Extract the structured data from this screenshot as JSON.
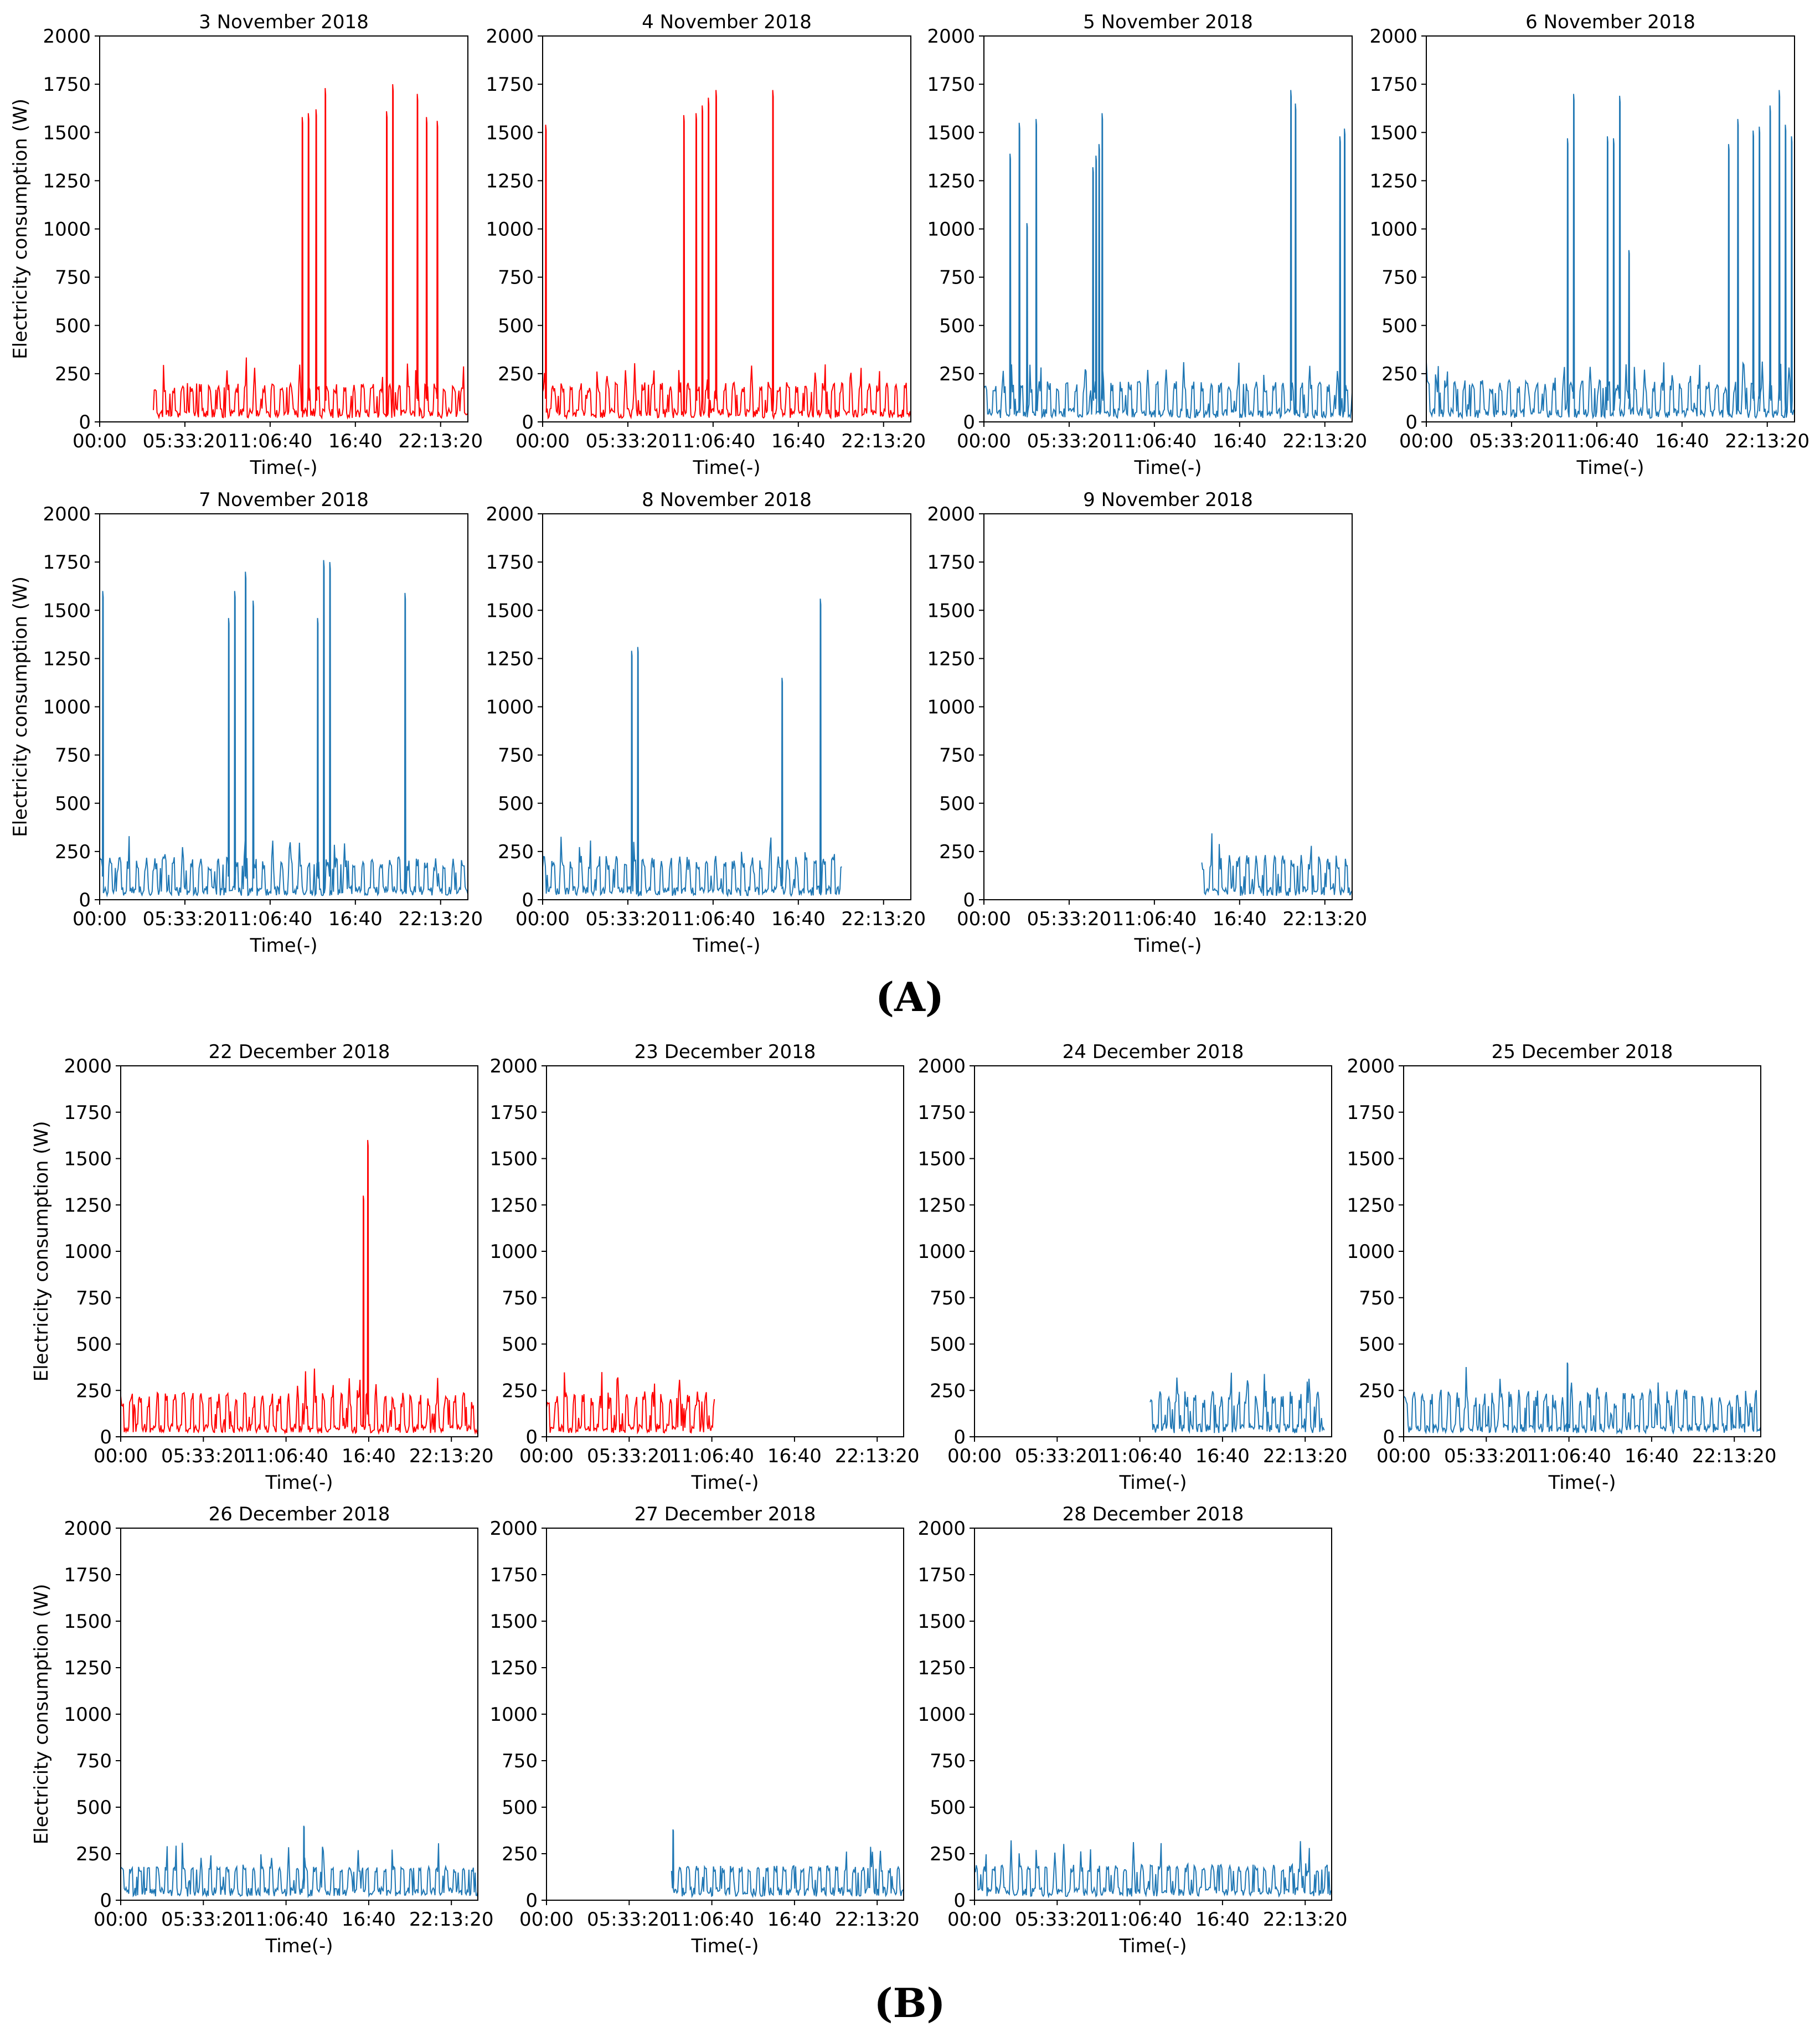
{
  "colors": {
    "highlight": "#ff0000",
    "normal": "#1f77b4"
  },
  "labels": {
    "ylabel": "Electricity consumption (W)",
    "xlabel": "Time(-)",
    "panel_a": "(A)",
    "panel_b": "(B)"
  },
  "chart_data": [
    {
      "type": "line",
      "title": "3 November 2018",
      "color": "red",
      "ylim": [
        0,
        2000
      ],
      "yticks": [
        0,
        250,
        500,
        750,
        1000,
        1250,
        1500,
        1750,
        2000
      ],
      "xticks": [
        "00:00",
        "05:33:20",
        "11:06:40",
        "16:40",
        "22:13:20"
      ],
      "xlabel": "Time(-)",
      "ylabel": "Electricity consumption (W)",
      "start_h": 3.5,
      "end_h": 24,
      "spikes": [
        [
          13.2,
          1580
        ],
        [
          13.6,
          1600
        ],
        [
          14.1,
          1620
        ],
        [
          14.7,
          1730
        ],
        [
          18.7,
          1610
        ],
        [
          19.1,
          1750
        ],
        [
          20.7,
          1700
        ],
        [
          21.3,
          1580
        ],
        [
          22.0,
          1560
        ]
      ],
      "base": "cyclic 30-200 W"
    },
    {
      "type": "line",
      "title": "4 November 2018",
      "color": "red",
      "ylim": [
        0,
        2000
      ],
      "yticks": [
        0,
        250,
        500,
        750,
        1000,
        1250,
        1500,
        1750,
        2000
      ],
      "xticks": [
        "00:00",
        "05:33:20",
        "11:06:40",
        "16:40",
        "22:13:20"
      ],
      "xlabel": "Time(-)",
      "ylabel": "Electricity consumption (W)",
      "start_h": 0,
      "end_h": 24,
      "spikes": [
        [
          0.2,
          1540
        ],
        [
          9.2,
          1590
        ],
        [
          10.0,
          1600
        ],
        [
          10.4,
          1640
        ],
        [
          10.8,
          1680
        ],
        [
          11.3,
          1720
        ],
        [
          15.0,
          1720
        ]
      ],
      "base": "cyclic 30-220 W"
    },
    {
      "type": "line",
      "title": "5 November 2018",
      "color": "blue",
      "ylim": [
        0,
        2000
      ],
      "yticks": [
        0,
        250,
        500,
        750,
        1000,
        1250,
        1500,
        1750,
        2000
      ],
      "xticks": [
        "00:00",
        "05:33:20",
        "11:06:40",
        "16:40",
        "22:13:20"
      ],
      "xlabel": "Time(-)",
      "ylabel": "Electricity consumption (W)",
      "start_h": 0,
      "end_h": 24,
      "spikes": [
        [
          1.7,
          1390
        ],
        [
          2.3,
          1550
        ],
        [
          2.8,
          1030
        ],
        [
          3.4,
          1570
        ],
        [
          7.1,
          1320
        ],
        [
          7.3,
          1380
        ],
        [
          7.5,
          1440
        ],
        [
          7.7,
          1600
        ],
        [
          20.0,
          1720
        ],
        [
          20.3,
          1650
        ],
        [
          23.2,
          1480
        ],
        [
          23.5,
          1520
        ]
      ],
      "base": "cyclic 30-250 W"
    },
    {
      "type": "line",
      "title": "6 November 2018",
      "color": "blue",
      "ylim": [
        0,
        2000
      ],
      "yticks": [
        0,
        250,
        500,
        750,
        1000,
        1250,
        1500,
        1750,
        2000
      ],
      "xticks": [
        "00:00",
        "05:33:20",
        "11:06:40",
        "16:40",
        "22:13:20"
      ],
      "xlabel": "Time(-)",
      "ylabel": "Electricity consumption (W)",
      "start_h": 0,
      "end_h": 24,
      "spikes": [
        [
          9.2,
          1470
        ],
        [
          9.6,
          1700
        ],
        [
          11.8,
          1480
        ],
        [
          12.2,
          1470
        ],
        [
          12.6,
          1690
        ],
        [
          13.2,
          890
        ],
        [
          19.7,
          1440
        ],
        [
          20.3,
          1570
        ],
        [
          21.3,
          1510
        ],
        [
          21.7,
          1530
        ],
        [
          22.4,
          1640
        ],
        [
          23.0,
          1720
        ],
        [
          23.4,
          1540
        ],
        [
          23.8,
          1480
        ]
      ],
      "base": "cyclic 30-250 W"
    },
    {
      "type": "line",
      "title": "7 November 2018",
      "color": "blue",
      "ylim": [
        0,
        2000
      ],
      "yticks": [
        0,
        250,
        500,
        750,
        1000,
        1250,
        1500,
        1750,
        2000
      ],
      "xticks": [
        "00:00",
        "05:33:20",
        "11:06:40",
        "16:40",
        "22:13:20"
      ],
      "xlabel": "Time(-)",
      "ylabel": "Electricity consumption (W)",
      "start_h": 0,
      "end_h": 24,
      "spikes": [
        [
          0.2,
          1600
        ],
        [
          8.4,
          1460
        ],
        [
          8.8,
          1600
        ],
        [
          9.5,
          1700
        ],
        [
          10.0,
          1550
        ],
        [
          14.2,
          1460
        ],
        [
          14.6,
          1760
        ],
        [
          15.0,
          1750
        ],
        [
          19.9,
          1590
        ]
      ],
      "base": "cyclic 30-250 W"
    },
    {
      "type": "line",
      "title": "8 November 2018",
      "color": "blue",
      "ylim": [
        0,
        2000
      ],
      "yticks": [
        0,
        250,
        500,
        750,
        1000,
        1250,
        1500,
        1750,
        2000
      ],
      "xticks": [
        "00:00",
        "05:33:20",
        "11:06:40",
        "16:40",
        "22:13:20"
      ],
      "xlabel": "Time(-)",
      "ylabel": "Electricity consumption (W)",
      "start_h": 0,
      "end_h": 19.5,
      "spikes": [
        [
          5.8,
          1290
        ],
        [
          6.2,
          1310
        ],
        [
          15.6,
          1150
        ],
        [
          18.1,
          1560
        ]
      ],
      "base": "cyclic 30-250 W"
    },
    {
      "type": "line",
      "title": "9 November 2018",
      "color": "blue",
      "ylim": [
        0,
        2000
      ],
      "yticks": [
        0,
        250,
        500,
        750,
        1000,
        1250,
        1500,
        1750,
        2000
      ],
      "xticks": [
        "00:00",
        "05:33:20",
        "11:06:40",
        "16:40",
        "22:13:20"
      ],
      "xlabel": "Time(-)",
      "ylabel": "Electricity consumption (W)",
      "start_h": 14.2,
      "end_h": 24,
      "spikes": [],
      "base": "cyclic 30-280 W"
    },
    {
      "type": "line",
      "title": "22 December 2018",
      "color": "red",
      "ylim": [
        0,
        2000
      ],
      "yticks": [
        0,
        250,
        500,
        750,
        1000,
        1250,
        1500,
        1750,
        2000
      ],
      "xticks": [
        "00:00",
        "05:33:20",
        "11:06:40",
        "16:40",
        "22:13:20"
      ],
      "xlabel": "Time(-)",
      "ylabel": "Electricity consumption (W)",
      "start_h": 0,
      "end_h": 24,
      "spikes": [
        [
          16.3,
          1300
        ],
        [
          16.6,
          1600
        ]
      ],
      "base": "cyclic 30-320 W"
    },
    {
      "type": "line",
      "title": "23 December 2018",
      "color": "red",
      "ylim": [
        0,
        2000
      ],
      "yticks": [
        0,
        250,
        500,
        750,
        1000,
        1250,
        1500,
        1750,
        2000
      ],
      "xticks": [
        "00:00",
        "05:33:20",
        "11:06:40",
        "16:40",
        "22:13:20"
      ],
      "xlabel": "Time(-)",
      "ylabel": "Electricity consumption (W)",
      "start_h": 0,
      "end_h": 11.3,
      "spikes": [],
      "base": "cyclic 30-330 W"
    },
    {
      "type": "line",
      "title": "24 December 2018",
      "color": "blue",
      "ylim": [
        0,
        2000
      ],
      "yticks": [
        0,
        250,
        500,
        750,
        1000,
        1250,
        1500,
        1750,
        2000
      ],
      "xticks": [
        "00:00",
        "05:33:20",
        "11:06:40",
        "16:40",
        "22:13:20"
      ],
      "xlabel": "Time(-)",
      "ylabel": "Electricity consumption (W)",
      "start_h": 11.8,
      "end_h": 23.5,
      "spikes": [],
      "base": "cyclic 20-220 W"
    },
    {
      "type": "line",
      "title": "25 December 2018",
      "color": "blue",
      "ylim": [
        0,
        2000
      ],
      "yticks": [
        0,
        250,
        500,
        750,
        1000,
        1250,
        1500,
        1750,
        2000
      ],
      "xticks": [
        "00:00",
        "05:33:20",
        "11:06:40",
        "16:40",
        "22:13:20"
      ],
      "xlabel": "Time(-)",
      "ylabel": "Electricity consumption (W)",
      "start_h": 0,
      "end_h": 24,
      "spikes": [
        [
          11.0,
          400
        ]
      ],
      "base": "cyclic 30-300 W"
    },
    {
      "type": "line",
      "title": "26 December 2018",
      "color": "blue",
      "ylim": [
        0,
        2000
      ],
      "yticks": [
        0,
        250,
        500,
        750,
        1000,
        1250,
        1500,
        1750,
        2000
      ],
      "xticks": [
        "00:00",
        "05:33:20",
        "11:06:40",
        "16:40",
        "22:13:20"
      ],
      "xlabel": "Time(-)",
      "ylabel": "Electricity consumption (W)",
      "start_h": 0,
      "end_h": 24,
      "spikes": [
        [
          12.3,
          400
        ]
      ],
      "base": "cyclic 30-320 W"
    },
    {
      "type": "line",
      "title": "27 December 2018",
      "color": "blue",
      "ylim": [
        0,
        2000
      ],
      "yticks": [
        0,
        250,
        500,
        750,
        1000,
        1250,
        1500,
        1750,
        2000
      ],
      "xticks": [
        "00:00",
        "05:33:20",
        "11:06:40",
        "16:40",
        "22:13:20"
      ],
      "xlabel": "Time(-)",
      "ylabel": "Electricity consumption (W)",
      "start_h": 8.4,
      "end_h": 24,
      "spikes": [
        [
          8.5,
          380
        ]
      ],
      "base": "cyclic 30-330 W"
    },
    {
      "type": "line",
      "title": "28 December 2018",
      "color": "blue",
      "ylim": [
        0,
        2000
      ],
      "yticks": [
        0,
        250,
        500,
        750,
        1000,
        1250,
        1500,
        1750,
        2000
      ],
      "xticks": [
        "00:00",
        "05:33:20",
        "11:06:40",
        "16:40",
        "22:13:20"
      ],
      "xlabel": "Time(-)",
      "ylabel": "Electricity consumption (W)",
      "start_h": 0,
      "end_h": 24,
      "spikes": [],
      "base": "cyclic 30-340 W"
    }
  ]
}
